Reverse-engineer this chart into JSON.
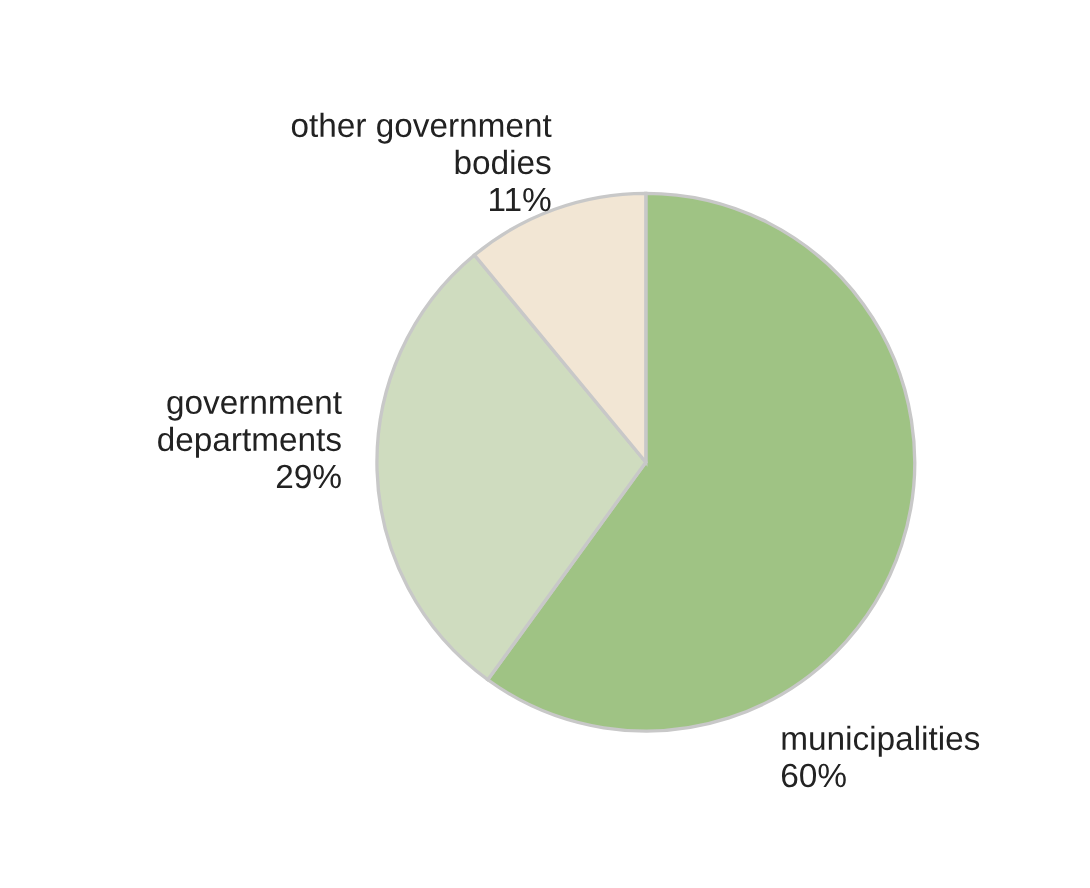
{
  "chart_data": {
    "type": "pie",
    "categories": [
      "municipalities",
      "government\ndepartments",
      "other government\nbodies"
    ],
    "values": [
      60,
      29,
      11
    ],
    "value_labels": [
      "60%",
      "29%",
      "11%"
    ],
    "colors": [
      "#9fc384",
      "#cfdcbf",
      "#f2e6d4"
    ],
    "legend": false
  }
}
